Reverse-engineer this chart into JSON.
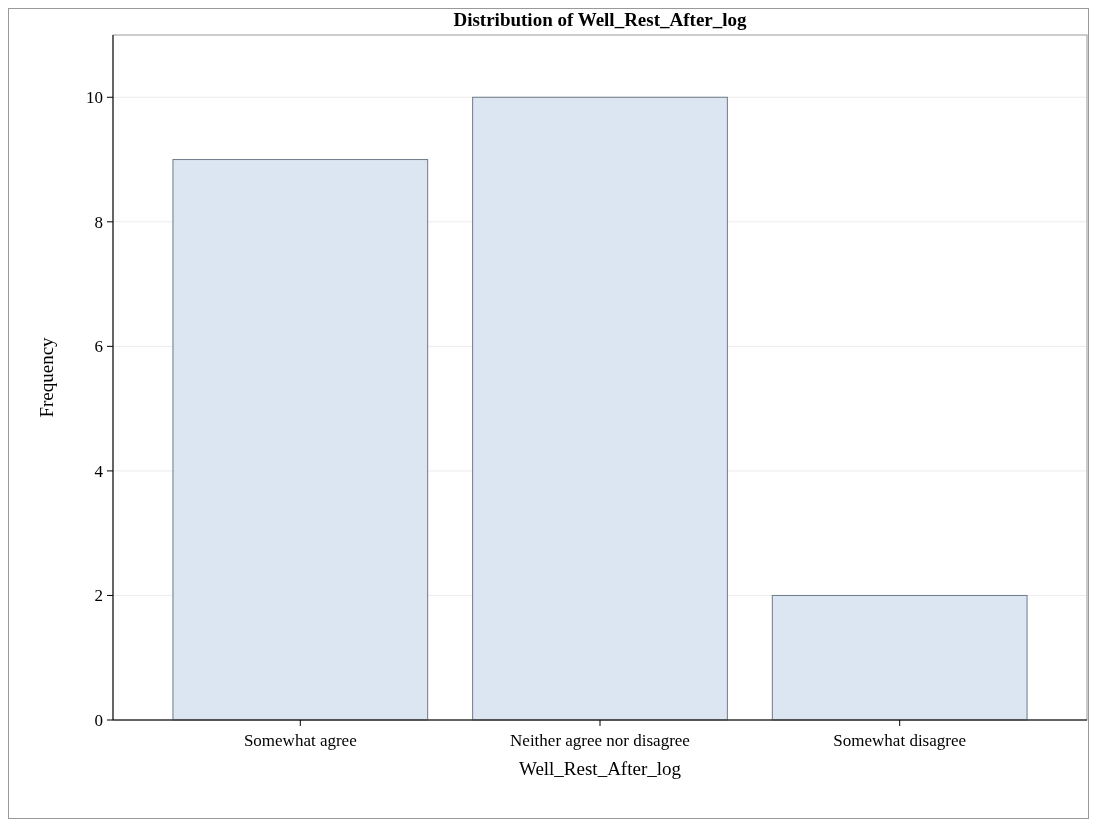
{
  "chart_data": {
    "type": "bar",
    "title": "Distribution of Well_Rest_After_log",
    "xlabel": "Well_Rest_After_log",
    "ylabel": "Frequency",
    "categories": [
      "Somewhat agree",
      "Neither agree nor disagree",
      "Somewhat disagree"
    ],
    "values": [
      9,
      10,
      2
    ],
    "color": "#dce6f2",
    "ylim": [
      0,
      11
    ],
    "yticks": [
      0,
      2,
      4,
      6,
      8,
      10
    ],
    "grid": "y"
  }
}
